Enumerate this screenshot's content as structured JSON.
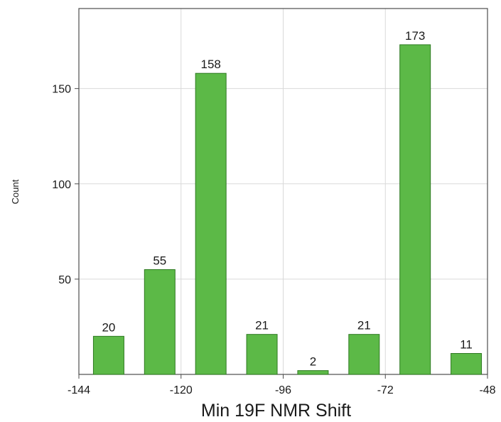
{
  "chart_data": {
    "type": "bar",
    "title": "",
    "xlabel": "Min 19F NMR Shift",
    "ylabel": "Count",
    "xlim": [
      -144,
      -48
    ],
    "ylim": [
      0,
      192
    ],
    "xticks": [
      -144,
      -120,
      -96,
      -72,
      -48
    ],
    "yticks": [
      50,
      100,
      150
    ],
    "grid": true,
    "bar_color": "#5cb947",
    "bar_edge_color": "#2f7a22",
    "bars": [
      {
        "x": -137,
        "value": 20
      },
      {
        "x": -125,
        "value": 55
      },
      {
        "x": -113,
        "value": 158
      },
      {
        "x": -101,
        "value": 21
      },
      {
        "x": -89,
        "value": 2
      },
      {
        "x": -77,
        "value": 21
      },
      {
        "x": -65,
        "value": 173
      },
      {
        "x": -53,
        "value": 11
      }
    ]
  }
}
